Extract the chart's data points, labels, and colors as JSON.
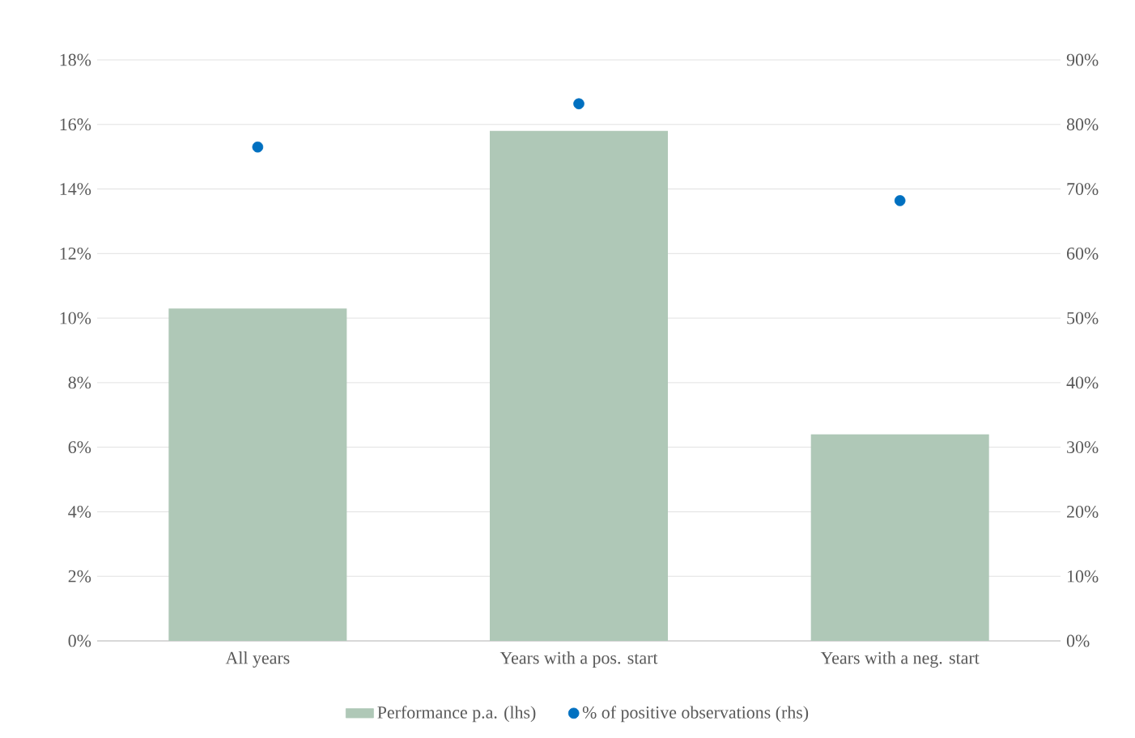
{
  "chart_data": {
    "type": "bar",
    "categories": [
      "All years",
      "Years with a pos. start",
      "Years with a neg. start"
    ],
    "series": [
      {
        "name": "Performance p.a. (lhs)",
        "type": "bar",
        "color": "#afc8b7",
        "values": [
          10.3,
          15.8,
          6.4
        ]
      },
      {
        "name": "% of positive observations (rhs)",
        "type": "scatter",
        "axis": "y2",
        "color": "#0070c0",
        "values": [
          76.5,
          83.2,
          68.2
        ]
      }
    ],
    "ylim": [
      0,
      18
    ],
    "yticks": [
      {
        "value": 0,
        "label": "0%"
      },
      {
        "value": 2,
        "label": "2%"
      },
      {
        "value": 4,
        "label": "4%"
      },
      {
        "value": 6,
        "label": "6%"
      },
      {
        "value": 8,
        "label": "8%"
      },
      {
        "value": 10,
        "label": "10%"
      },
      {
        "value": 12,
        "label": "12%"
      },
      {
        "value": 14,
        "label": "14%"
      },
      {
        "value": 16,
        "label": "16%"
      },
      {
        "value": 18,
        "label": "18%"
      }
    ],
    "y2lim": [
      0,
      90
    ],
    "y2ticks": [
      {
        "value": 0,
        "label": "0%"
      },
      {
        "value": 10,
        "label": "10%"
      },
      {
        "value": 20,
        "label": "20%"
      },
      {
        "value": 30,
        "label": "30%"
      },
      {
        "value": 40,
        "label": "40%"
      },
      {
        "value": 50,
        "label": "50%"
      },
      {
        "value": 60,
        "label": "60%"
      },
      {
        "value": 70,
        "label": "70%"
      },
      {
        "value": 80,
        "label": "80%"
      },
      {
        "value": 90,
        "label": "90%"
      }
    ],
    "grid": "y",
    "legend": "bottom"
  }
}
